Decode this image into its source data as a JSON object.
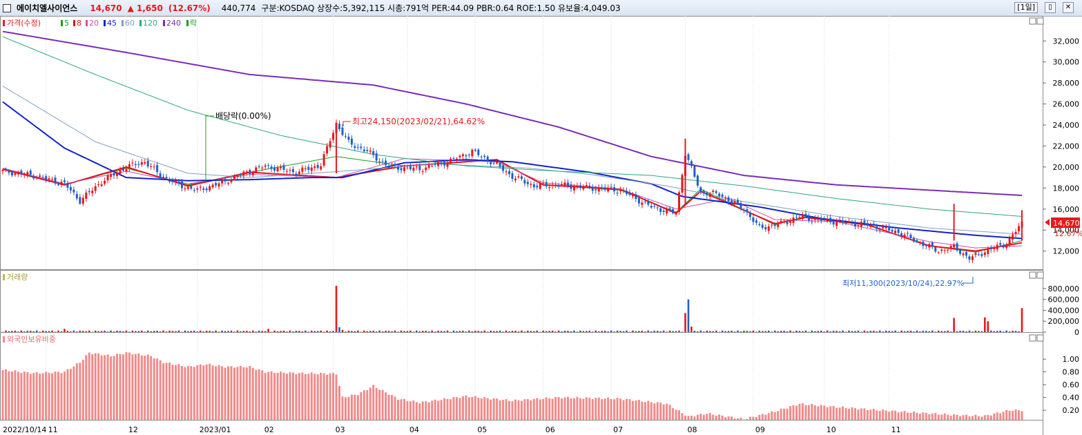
{
  "header": {
    "stock_name": "에이치엘사이언스",
    "price": "14,670",
    "change_arrow": "▲",
    "change": "1,650",
    "change_pct": "(12.67%)",
    "volume": "440,774",
    "info": "구분:KOSDAQ 상장수:5,392,115 시총:791억 PER:44.09 PBR:0.64 ROE:1.50 유보율:4,049.03",
    "period": "[1일]"
  },
  "colors": {
    "up": "#e8171c",
    "down": "#1f5fc8",
    "ma5": "#19a019",
    "ma8": "#e0121b",
    "ma20": "#c94fb0",
    "ma45": "#1223c8",
    "ma60": "#7f9fc4",
    "ma120": "#2aa87a",
    "ma240": "#7a2bb8",
    "foreign": "#f08a8a"
  },
  "legend": {
    "price": {
      "label": "가격(수정)",
      "marker_color": "#e8171c"
    },
    "items": [
      {
        "label": "5",
        "color": "#19a019"
      },
      {
        "label": "8",
        "color": "#e0121b"
      },
      {
        "label": "20",
        "color": "#c94fb0"
      },
      {
        "label": "45",
        "color": "#1223c8"
      },
      {
        "label": "60",
        "color": "#7f9fc4"
      },
      {
        "label": "120",
        "color": "#2aa87a"
      },
      {
        "label": "240",
        "color": "#7a2bb8"
      },
      {
        "label": "락",
        "color": "#19a019"
      }
    ],
    "volume": "거래량",
    "foreign": "외국인보유비중"
  },
  "annotations": {
    "dividend": "배당락(0.00%)",
    "high": "최고24,150(2023/02/21),64.62%",
    "low": "최저11,300(2023/10/24),22.97%",
    "current_price": "14,670",
    "current_pct": "12.67%"
  },
  "chart_data": [
    {
      "type": "candlestick",
      "name": "가격(수정)",
      "date_range": [
        "2022/10/14",
        "2023/11/14"
      ],
      "x_ticks": [
        "2022/10/14",
        "11",
        "12",
        "2023/01",
        "02",
        "03",
        "04",
        "05",
        "06",
        "07",
        "08",
        "09",
        "10",
        "11"
      ],
      "ylim": [
        10400,
        33200
      ],
      "y_ticks": [
        12000,
        14000,
        16000,
        18000,
        20000,
        22000,
        24000,
        26000,
        28000,
        30000,
        32000
      ],
      "y_tick_labels": [
        "12,000",
        "14,000",
        "16,000",
        "18,000",
        "20,000",
        "22,000",
        "24,000",
        "26,000",
        "28,000",
        "30,000",
        "32,000"
      ],
      "close_approx": [
        [
          0,
          19600
        ],
        [
          10,
          19200
        ],
        [
          20,
          18400
        ],
        [
          25,
          16800
        ],
        [
          32,
          18600
        ],
        [
          40,
          20000
        ],
        [
          46,
          20500
        ],
        [
          52,
          19000
        ],
        [
          58,
          18200
        ],
        [
          63,
          17800
        ],
        [
          70,
          18400
        ],
        [
          78,
          19400
        ],
        [
          85,
          20100
        ],
        [
          95,
          19500
        ],
        [
          103,
          20200
        ],
        [
          108,
          24150
        ],
        [
          112,
          22300
        ],
        [
          118,
          21500
        ],
        [
          125,
          20000
        ],
        [
          135,
          19800
        ],
        [
          145,
          20600
        ],
        [
          152,
          21500
        ],
        [
          160,
          20200
        ],
        [
          165,
          19100
        ],
        [
          172,
          18200
        ],
        [
          180,
          18300
        ],
        [
          190,
          18000
        ],
        [
          200,
          17800
        ],
        [
          210,
          16200
        ],
        [
          218,
          15600
        ],
        [
          221,
          21300
        ],
        [
          226,
          17600
        ],
        [
          232,
          17400
        ],
        [
          240,
          16000
        ],
        [
          245,
          14200
        ],
        [
          252,
          14600
        ],
        [
          258,
          15300
        ],
        [
          263,
          15000
        ],
        [
          270,
          14800
        ],
        [
          280,
          14500
        ],
        [
          290,
          13800
        ],
        [
          297,
          12800
        ],
        [
          303,
          12000
        ],
        [
          308,
          12400
        ],
        [
          313,
          11300
        ],
        [
          320,
          12200
        ],
        [
          325,
          12700
        ],
        [
          330,
          14670
        ]
      ],
      "moving_averages": {
        "5": [
          [
            0,
            19800
          ],
          [
            20,
            18300
          ],
          [
            40,
            19900
          ],
          [
            60,
            18300
          ],
          [
            80,
            19500
          ],
          [
            108,
            21000
          ],
          [
            130,
            20100
          ],
          [
            160,
            20700
          ],
          [
            175,
            18300
          ],
          [
            200,
            17800
          ],
          [
            218,
            15700
          ],
          [
            226,
            17900
          ],
          [
            250,
            14500
          ],
          [
            260,
            15300
          ],
          [
            280,
            14500
          ],
          [
            300,
            12500
          ],
          [
            315,
            11900
          ],
          [
            330,
            13000
          ]
        ],
        "8": [
          [
            0,
            19800
          ],
          [
            20,
            18300
          ],
          [
            40,
            20000
          ],
          [
            60,
            18200
          ],
          [
            80,
            19500
          ],
          [
            108,
            19000
          ],
          [
            130,
            20100
          ],
          [
            160,
            20700
          ],
          [
            175,
            18300
          ],
          [
            200,
            17900
          ],
          [
            218,
            15600
          ],
          [
            226,
            17700
          ],
          [
            250,
            14600
          ],
          [
            260,
            15200
          ],
          [
            280,
            14500
          ],
          [
            300,
            12500
          ],
          [
            315,
            12000
          ],
          [
            330,
            12800
          ]
        ],
        "20": [
          [
            0,
            19900
          ],
          [
            20,
            18400
          ],
          [
            40,
            19600
          ],
          [
            60,
            18400
          ],
          [
            80,
            19300
          ],
          [
            108,
            19000
          ],
          [
            130,
            20800
          ],
          [
            160,
            20500
          ],
          [
            175,
            18500
          ],
          [
            200,
            17900
          ],
          [
            218,
            16000
          ],
          [
            235,
            17000
          ],
          [
            250,
            15000
          ],
          [
            270,
            14800
          ],
          [
            300,
            12900
          ],
          [
            315,
            12300
          ],
          [
            330,
            12500
          ]
        ],
        "45": [
          [
            0,
            26200
          ],
          [
            20,
            21800
          ],
          [
            40,
            19000
          ],
          [
            60,
            18700
          ],
          [
            80,
            18800
          ],
          [
            100,
            19000
          ],
          [
            110,
            19000
          ],
          [
            130,
            20400
          ],
          [
            150,
            20700
          ],
          [
            165,
            20500
          ],
          [
            190,
            19500
          ],
          [
            210,
            18400
          ],
          [
            220,
            17200
          ],
          [
            245,
            16200
          ],
          [
            265,
            15100
          ],
          [
            290,
            14200
          ],
          [
            315,
            13500
          ],
          [
            330,
            13200
          ]
        ],
        "60": [
          [
            0,
            27700
          ],
          [
            30,
            22400
          ],
          [
            60,
            19400
          ],
          [
            80,
            19000
          ],
          [
            110,
            19600
          ],
          [
            140,
            20300
          ],
          [
            170,
            19900
          ],
          [
            190,
            19300
          ],
          [
            215,
            18200
          ],
          [
            240,
            16700
          ],
          [
            270,
            15300
          ],
          [
            300,
            14200
          ],
          [
            330,
            13600
          ]
        ],
        "120": [
          [
            0,
            32400
          ],
          [
            30,
            28800
          ],
          [
            60,
            25400
          ],
          [
            90,
            23000
          ],
          [
            120,
            21200
          ],
          [
            150,
            20100
          ],
          [
            180,
            19600
          ],
          [
            210,
            19200
          ],
          [
            240,
            18200
          ],
          [
            270,
            17000
          ],
          [
            300,
            16000
          ],
          [
            330,
            15300
          ]
        ],
        "240": [
          [
            0,
            32900
          ],
          [
            40,
            30900
          ],
          [
            80,
            28800
          ],
          [
            120,
            27800
          ],
          [
            150,
            26000
          ],
          [
            180,
            23800
          ],
          [
            210,
            21000
          ],
          [
            240,
            19200
          ],
          [
            270,
            18300
          ],
          [
            300,
            17800
          ],
          [
            330,
            17300
          ]
        ]
      }
    },
    {
      "type": "bar",
      "name": "거래량",
      "ylim": [
        0,
        950000
      ],
      "y_ticks": [
        0,
        200000,
        400000,
        600000,
        800000
      ],
      "y_tick_labels": [
        "0",
        "200,000",
        "400,000",
        "600,000",
        "800,000"
      ],
      "spikes": [
        [
          20,
          60000
        ],
        [
          86,
          60000
        ],
        [
          108,
          850000
        ],
        [
          109,
          90000
        ],
        [
          110,
          40000
        ],
        [
          221,
          350000
        ],
        [
          222,
          600000
        ],
        [
          223,
          100000
        ],
        [
          308,
          260000
        ],
        [
          318,
          270000
        ],
        [
          319,
          200000
        ],
        [
          330,
          440774
        ]
      ],
      "baseline_range": [
        5000,
        30000
      ]
    },
    {
      "type": "bar",
      "name": "외국인보유비중",
      "ylim": [
        0.05,
        1.25
      ],
      "y_ticks": [
        0.2,
        0.4,
        0.6,
        0.8,
        1.0
      ],
      "y_tick_labels": [
        "0.20",
        "0.40",
        "0.60",
        "0.80",
        "1.00"
      ],
      "values_approx": [
        [
          0,
          0.83
        ],
        [
          10,
          0.78
        ],
        [
          20,
          0.8
        ],
        [
          25,
          0.95
        ],
        [
          28,
          1.1
        ],
        [
          35,
          1.05
        ],
        [
          40,
          1.1
        ],
        [
          48,
          1.05
        ],
        [
          52,
          0.95
        ],
        [
          60,
          0.88
        ],
        [
          66,
          0.92
        ],
        [
          72,
          0.88
        ],
        [
          80,
          0.88
        ],
        [
          85,
          0.8
        ],
        [
          95,
          0.78
        ],
        [
          108,
          0.77
        ],
        [
          110,
          0.4
        ],
        [
          115,
          0.45
        ],
        [
          120,
          0.58
        ],
        [
          128,
          0.38
        ],
        [
          135,
          0.32
        ],
        [
          150,
          0.42
        ],
        [
          165,
          0.35
        ],
        [
          180,
          0.4
        ],
        [
          200,
          0.38
        ],
        [
          215,
          0.3
        ],
        [
          222,
          0.1
        ],
        [
          228,
          0.15
        ],
        [
          240,
          0.06
        ],
        [
          250,
          0.18
        ],
        [
          258,
          0.3
        ],
        [
          270,
          0.25
        ],
        [
          290,
          0.18
        ],
        [
          300,
          0.15
        ],
        [
          310,
          0.12
        ],
        [
          318,
          0.11
        ],
        [
          326,
          0.2
        ],
        [
          330,
          0.2
        ]
      ]
    }
  ]
}
